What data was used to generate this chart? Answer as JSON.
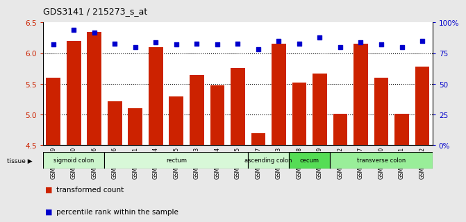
{
  "title": "GDS3141 / 215273_s_at",
  "samples": [
    "GSM234909",
    "GSM234910",
    "GSM234916",
    "GSM234926",
    "GSM234911",
    "GSM234914",
    "GSM234915",
    "GSM234923",
    "GSM234924",
    "GSM234925",
    "GSM234927",
    "GSM234913",
    "GSM234918",
    "GSM234919",
    "GSM234912",
    "GSM234917",
    "GSM234920",
    "GSM234921",
    "GSM234922"
  ],
  "transformed_count": [
    5.6,
    6.2,
    6.35,
    5.22,
    5.1,
    6.1,
    5.3,
    5.65,
    5.48,
    5.76,
    4.7,
    6.16,
    5.52,
    5.67,
    5.01,
    6.15,
    5.6,
    5.01,
    5.78
  ],
  "percentile_rank": [
    82,
    94,
    92,
    83,
    80,
    84,
    82,
    83,
    82,
    83,
    78,
    85,
    83,
    88,
    80,
    84,
    82,
    80,
    85
  ],
  "bar_color": "#cc2200",
  "dot_color": "#0000cc",
  "ylim_left": [
    4.5,
    6.5
  ],
  "ylim_right": [
    0,
    100
  ],
  "yticks_left": [
    4.5,
    5.0,
    5.5,
    6.0,
    6.5
  ],
  "yticks_right": [
    0,
    25,
    50,
    75,
    100
  ],
  "ytick_labels_right": [
    "0%",
    "25",
    "50",
    "75",
    "100%"
  ],
  "tissue_data": [
    {
      "label": "sigmoid colon",
      "start": 0,
      "end": 3,
      "color": "#ccf5cc"
    },
    {
      "label": "rectum",
      "start": 3,
      "end": 10,
      "color": "#d8f8d8"
    },
    {
      "label": "ascending colon",
      "start": 10,
      "end": 12,
      "color": "#ccf5cc"
    },
    {
      "label": "cecum",
      "start": 12,
      "end": 14,
      "color": "#55dd55"
    },
    {
      "label": "transverse colon",
      "start": 14,
      "end": 19,
      "color": "#99ee99"
    }
  ],
  "grid_linestyle": ":",
  "grid_linewidth": 0.8,
  "grid_yticks": [
    5.0,
    5.5,
    6.0
  ],
  "fig_bg_color": "#e8e8e8",
  "plot_bg_color": "#ffffff"
}
